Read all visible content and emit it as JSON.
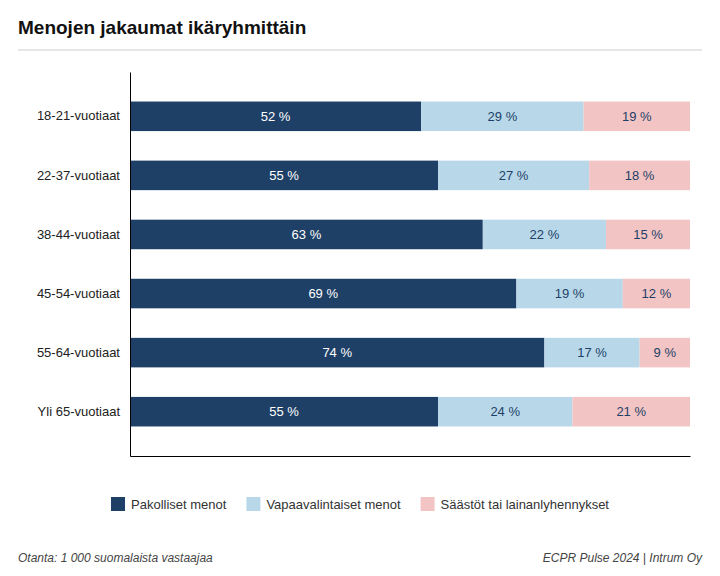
{
  "chart_data": {
    "type": "bar",
    "orientation": "horizontal",
    "stacked": true,
    "title": "Menojen jakaumat ikäryhmittäin",
    "categories": [
      "18-21-vuotiaat",
      "22-37-vuotiaat",
      "38-44-vuotiaat",
      "45-54-vuotiaat",
      "55-64-vuotiaat",
      "Yli 65-vuotiaat"
    ],
    "series": [
      {
        "name": "Pakolliset menot",
        "color": "#1e3f66",
        "values": [
          52,
          55,
          63,
          69,
          74,
          55
        ],
        "value_labels": [
          "52 %",
          "55 %",
          "63 %",
          "69 %",
          "74 %",
          "55 %"
        ]
      },
      {
        "name": "Vapaavalintaiset menot",
        "color": "#b8d8ea",
        "values": [
          29,
          27,
          22,
          19,
          17,
          24
        ],
        "value_labels": [
          "29 %",
          "27 %",
          "22 %",
          "19 %",
          "17 %",
          "24 %"
        ]
      },
      {
        "name": "Säästöt tai lainanlyhennykset",
        "color": "#f2c4c4",
        "values": [
          19,
          18,
          15,
          12,
          9,
          21
        ],
        "value_labels": [
          "19 %",
          "18 %",
          "15 %",
          "12 %",
          "9 %",
          "21 %"
        ]
      }
    ],
    "xlim": [
      0,
      100
    ],
    "tick_labels": "y",
    "grid": false,
    "legend": "bottom",
    "data_labels": true,
    "annotations": [
      "Otanta: 1 000 suomalaista vastaajaa",
      "ECPR Pulse 2024 | Intrum Oy"
    ]
  }
}
